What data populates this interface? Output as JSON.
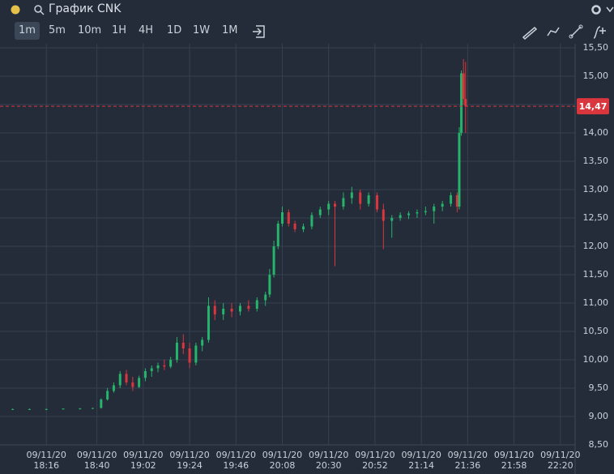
{
  "window": {
    "title": "График CNK",
    "timeframes": [
      "1m",
      "5m",
      "10m",
      "1H",
      "4H",
      "1D",
      "1W",
      "1M"
    ],
    "active_timeframe": 0
  },
  "chart_data": {
    "type": "candlestick",
    "xlim": [
      "17:54",
      "22:27"
    ],
    "xticks": [
      {
        "date": "09/11/20",
        "time": "18:16"
      },
      {
        "date": "09/11/20",
        "time": "18:40"
      },
      {
        "date": "09/11/20",
        "time": "19:02"
      },
      {
        "date": "09/11/20",
        "time": "19:24"
      },
      {
        "date": "09/11/20",
        "time": "19:46"
      },
      {
        "date": "09/11/20",
        "time": "20:08"
      },
      {
        "date": "09/11/20",
        "time": "20:30"
      },
      {
        "date": "09/11/20",
        "time": "20:52"
      },
      {
        "date": "09/11/20",
        "time": "21:14"
      },
      {
        "date": "09/11/20",
        "time": "21:36"
      },
      {
        "date": "09/11/20",
        "time": "21:58"
      },
      {
        "date": "09/11/20",
        "time": "22:20"
      }
    ],
    "ylim": [
      8.5,
      15.5
    ],
    "yticks": [
      {
        "value": 8.5,
        "label": "8,50"
      },
      {
        "value": 9,
        "label": "9,00"
      },
      {
        "value": 9.5,
        "label": "9,50"
      },
      {
        "value": 10,
        "label": "10,00"
      },
      {
        "value": 10.5,
        "label": "10,50"
      },
      {
        "value": 11,
        "label": "11,00"
      },
      {
        "value": 11.5,
        "label": "11,50"
      },
      {
        "value": 12,
        "label": "12,00"
      },
      {
        "value": 12.5,
        "label": "12,50"
      },
      {
        "value": 13,
        "label": "13,00"
      },
      {
        "value": 13.5,
        "label": "13,50"
      },
      {
        "value": 14,
        "label": "14,00"
      },
      {
        "value": 14.5,
        "label": "14,50"
      },
      {
        "value": 15,
        "label": "15,00"
      },
      {
        "value": 15.5,
        "label": "15,50"
      }
    ],
    "grid": true,
    "up_color": "#26b36b",
    "down_color": "#d9363e",
    "price_line": {
      "value": 14.47,
      "label": "14,47",
      "color": "#d9363e"
    },
    "x": [
      "18:00",
      "18:08",
      "18:16",
      "18:24",
      "18:32",
      "18:38",
      "18:42",
      "18:45",
      "18:48",
      "18:51",
      "18:54",
      "18:57",
      "19:00",
      "19:03",
      "19:06",
      "19:09",
      "19:12",
      "19:15",
      "19:18",
      "19:21",
      "19:24",
      "19:27",
      "19:30",
      "19:33",
      "19:36",
      "19:40",
      "19:44",
      "19:48",
      "19:52",
      "19:56",
      "20:00",
      "20:02",
      "20:04",
      "20:06",
      "20:08",
      "20:11",
      "20:14",
      "20:18",
      "20:22",
      "20:26",
      "20:30",
      "20:33",
      "20:37",
      "20:41",
      "20:45",
      "20:49",
      "20:53",
      "20:56",
      "21:00",
      "21:04",
      "21:08",
      "21:12",
      "21:16",
      "21:20",
      "21:24",
      "21:28",
      "21:31",
      "21:32",
      "21:33",
      "21:34",
      "21:35"
    ],
    "open": [
      9.13,
      9.13,
      9.13,
      9.13,
      9.14,
      9.14,
      9.15,
      9.3,
      9.45,
      9.55,
      9.75,
      9.6,
      9.52,
      9.68,
      9.8,
      9.85,
      9.9,
      9.88,
      10.0,
      10.3,
      10.2,
      9.95,
      10.25,
      10.35,
      10.95,
      10.8,
      10.9,
      10.85,
      10.95,
      10.9,
      11.05,
      11.15,
      11.5,
      12.0,
      12.4,
      12.6,
      12.4,
      12.3,
      12.35,
      12.55,
      12.65,
      12.75,
      12.7,
      12.85,
      12.95,
      12.75,
      12.9,
      12.65,
      12.45,
      12.5,
      12.55,
      12.58,
      12.6,
      12.62,
      12.7,
      12.75,
      12.9,
      12.7,
      14.0,
      15.05,
      14.6
    ],
    "high": [
      9.14,
      9.14,
      9.14,
      9.14,
      9.15,
      9.15,
      9.32,
      9.5,
      9.6,
      9.8,
      9.82,
      9.7,
      9.72,
      9.85,
      9.9,
      9.95,
      10.0,
      10.05,
      10.4,
      10.45,
      10.3,
      10.3,
      10.4,
      11.1,
      11.05,
      11.0,
      11.0,
      11.0,
      11.05,
      11.1,
      11.2,
      11.6,
      12.1,
      12.45,
      12.7,
      12.65,
      12.45,
      12.4,
      12.6,
      12.7,
      12.8,
      12.8,
      12.95,
      13.05,
      13.0,
      12.95,
      12.95,
      12.75,
      12.55,
      12.6,
      12.62,
      12.65,
      12.7,
      12.75,
      12.8,
      12.95,
      12.95,
      14.1,
      15.1,
      15.3,
      15.25
    ],
    "low": [
      9.12,
      9.12,
      9.12,
      9.12,
      9.13,
      9.13,
      9.14,
      9.28,
      9.42,
      9.5,
      9.55,
      9.45,
      9.5,
      9.62,
      9.7,
      9.78,
      9.82,
      9.85,
      9.95,
      10.1,
      9.85,
      9.9,
      10.15,
      10.3,
      10.7,
      10.7,
      10.75,
      10.78,
      10.85,
      10.85,
      10.95,
      11.1,
      11.45,
      11.95,
      12.35,
      12.35,
      12.25,
      12.25,
      12.3,
      12.5,
      12.55,
      11.65,
      12.65,
      12.75,
      12.65,
      12.7,
      12.6,
      11.95,
      12.15,
      12.45,
      12.48,
      12.5,
      12.55,
      12.4,
      12.62,
      12.7,
      12.6,
      12.65,
      13.95,
      14.5,
      14.0
    ],
    "close": [
      9.13,
      9.13,
      9.13,
      9.14,
      9.14,
      9.15,
      9.3,
      9.45,
      9.55,
      9.75,
      9.6,
      9.52,
      9.68,
      9.8,
      9.85,
      9.9,
      9.88,
      10.0,
      10.3,
      10.2,
      9.95,
      10.25,
      10.35,
      10.95,
      10.8,
      10.9,
      10.85,
      10.95,
      10.9,
      11.05,
      11.15,
      11.5,
      12.0,
      12.4,
      12.6,
      12.4,
      12.3,
      12.35,
      12.55,
      12.65,
      12.75,
      12.7,
      12.85,
      12.95,
      12.75,
      12.9,
      12.65,
      12.45,
      12.5,
      12.55,
      12.58,
      12.6,
      12.62,
      12.7,
      12.75,
      12.9,
      12.7,
      14.0,
      15.05,
      14.6,
      14.47
    ]
  }
}
